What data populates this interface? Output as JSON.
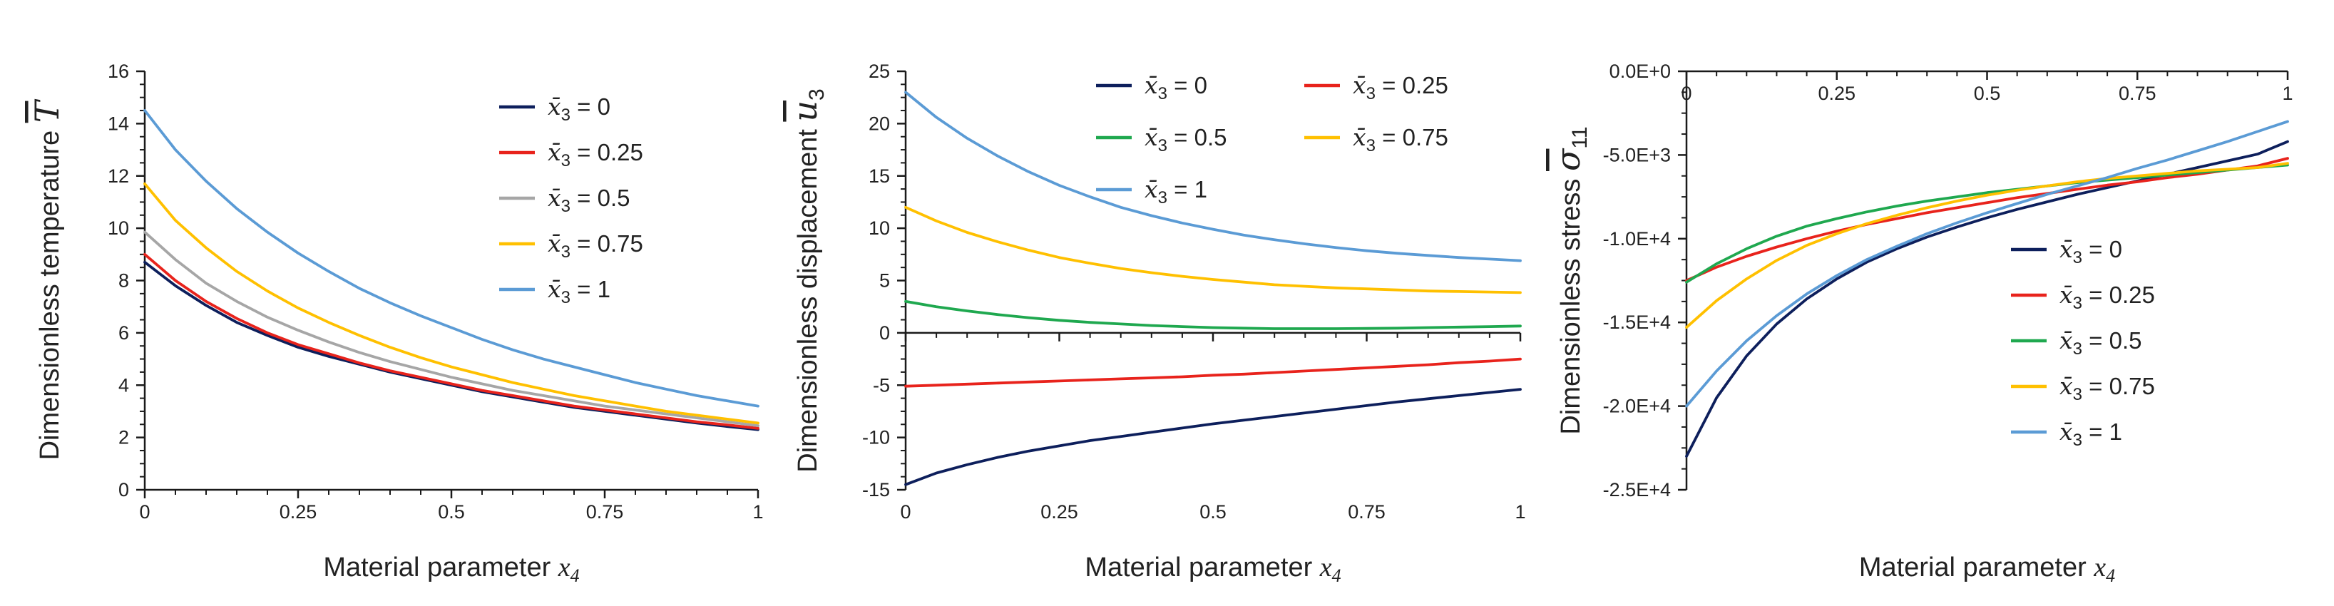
{
  "chart_data": [
    {
      "type": "line",
      "id": "temperature",
      "title": "",
      "xlabel_prefix": "Material parameter ",
      "xlabel_var": "x",
      "xlabel_sub": "4",
      "ylabel_text": "Dimensionless temperature ",
      "ylabel_symbol": "T",
      "ylabel_sub": "",
      "xlim": [
        0,
        1
      ],
      "ylim": [
        0,
        16
      ],
      "xticks": [
        0,
        0.25,
        0.5,
        0.75,
        1
      ],
      "xtick_labels": [
        "0",
        "0.25",
        "0.5",
        "0.75",
        "1"
      ],
      "yticks": [
        0,
        2,
        4,
        6,
        8,
        10,
        12,
        14,
        16
      ],
      "ytick_labels": [
        "0",
        "2",
        "4",
        "6",
        "8",
        "10",
        "12",
        "14",
        "16"
      ],
      "legend_columns": 1,
      "legend_position": "top-right",
      "legend_symbol": "x̄",
      "legend_sub": "3",
      "x": [
        0,
        0.05,
        0.1,
        0.15,
        0.2,
        0.25,
        0.3,
        0.35,
        0.4,
        0.45,
        0.5,
        0.55,
        0.6,
        0.65,
        0.7,
        0.75,
        0.8,
        0.85,
        0.9,
        0.95,
        1
      ],
      "series": [
        {
          "name": "= 0",
          "color": "#0d1f5c",
          "values": [
            8.7,
            7.8,
            7.05,
            6.4,
            5.9,
            5.45,
            5.1,
            4.8,
            4.5,
            4.25,
            4.0,
            3.75,
            3.55,
            3.35,
            3.15,
            3.0,
            2.85,
            2.7,
            2.55,
            2.42,
            2.3
          ]
        },
        {
          "name": "= 0.25",
          "color": "#e8231c",
          "values": [
            9.0,
            8.0,
            7.2,
            6.55,
            6.0,
            5.55,
            5.2,
            4.85,
            4.55,
            4.3,
            4.05,
            3.8,
            3.6,
            3.4,
            3.2,
            3.05,
            2.9,
            2.75,
            2.6,
            2.48,
            2.35
          ]
        },
        {
          "name": "= 0.5",
          "color": "#a6a6a6",
          "values": [
            9.85,
            8.8,
            7.9,
            7.2,
            6.6,
            6.1,
            5.65,
            5.25,
            4.9,
            4.6,
            4.3,
            4.05,
            3.8,
            3.6,
            3.4,
            3.2,
            3.05,
            2.9,
            2.75,
            2.6,
            2.45
          ]
        },
        {
          "name": "= 0.75",
          "color": "#ffc000",
          "values": [
            11.7,
            10.3,
            9.25,
            8.35,
            7.6,
            6.95,
            6.4,
            5.9,
            5.45,
            5.05,
            4.7,
            4.4,
            4.1,
            3.85,
            3.6,
            3.4,
            3.2,
            3.0,
            2.85,
            2.7,
            2.55
          ]
        },
        {
          "name": "= 1",
          "color": "#5b9bd5",
          "values": [
            14.5,
            13.0,
            11.8,
            10.75,
            9.85,
            9.05,
            8.35,
            7.7,
            7.15,
            6.65,
            6.2,
            5.75,
            5.35,
            5.0,
            4.7,
            4.4,
            4.1,
            3.85,
            3.6,
            3.4,
            3.2
          ]
        }
      ]
    },
    {
      "type": "line",
      "id": "displacement",
      "title": "",
      "xlabel_prefix": "Material parameter ",
      "xlabel_var": "x",
      "xlabel_sub": "4",
      "ylabel_text": "Dimensionless displacement ",
      "ylabel_symbol": "u",
      "ylabel_sub": "3",
      "xlim": [
        0,
        1
      ],
      "ylim": [
        -15,
        25
      ],
      "xticks": [
        0,
        0.25,
        0.5,
        0.75,
        1
      ],
      "xtick_labels": [
        "0",
        "0.25",
        "0.5",
        "0.75",
        "1"
      ],
      "yticks": [
        -15,
        -10,
        -5,
        0,
        5,
        10,
        15,
        20,
        25
      ],
      "ytick_labels": [
        "-15",
        "-10",
        "-5",
        "0",
        "5",
        "10",
        "15",
        "20",
        "25"
      ],
      "legend_columns": 2,
      "legend_position": "top",
      "legend_symbol": "x̄",
      "legend_sub": "3",
      "x": [
        0,
        0.05,
        0.1,
        0.15,
        0.2,
        0.25,
        0.3,
        0.35,
        0.4,
        0.45,
        0.5,
        0.55,
        0.6,
        0.65,
        0.7,
        0.75,
        0.8,
        0.85,
        0.9,
        0.95,
        1
      ],
      "series": [
        {
          "name": "= 0",
          "color": "#0d1f5c",
          "values": [
            -14.5,
            -13.4,
            -12.6,
            -11.9,
            -11.3,
            -10.8,
            -10.3,
            -9.9,
            -9.5,
            -9.1,
            -8.7,
            -8.35,
            -8.0,
            -7.65,
            -7.3,
            -6.95,
            -6.6,
            -6.3,
            -6.0,
            -5.7,
            -5.4
          ]
        },
        {
          "name": "= 0.25",
          "color": "#e8231c",
          "values": [
            -5.1,
            -5.0,
            -4.9,
            -4.8,
            -4.7,
            -4.6,
            -4.5,
            -4.4,
            -4.3,
            -4.2,
            -4.05,
            -3.95,
            -3.8,
            -3.65,
            -3.5,
            -3.35,
            -3.2,
            -3.05,
            -2.85,
            -2.7,
            -2.5
          ]
        },
        {
          "name": "= 0.5",
          "color": "#1fa84f",
          "values": [
            3.0,
            2.5,
            2.1,
            1.75,
            1.45,
            1.2,
            1.0,
            0.85,
            0.7,
            0.6,
            0.5,
            0.45,
            0.4,
            0.4,
            0.4,
            0.42,
            0.45,
            0.5,
            0.55,
            0.6,
            0.65
          ]
        },
        {
          "name": "= 0.75",
          "color": "#ffc000",
          "values": [
            12.0,
            10.7,
            9.6,
            8.7,
            7.9,
            7.2,
            6.65,
            6.15,
            5.75,
            5.4,
            5.1,
            4.85,
            4.6,
            4.45,
            4.3,
            4.2,
            4.1,
            4.0,
            3.95,
            3.9,
            3.85
          ]
        },
        {
          "name": "= 1",
          "color": "#5b9bd5",
          "values": [
            23.0,
            20.6,
            18.6,
            16.9,
            15.4,
            14.1,
            13.0,
            12.0,
            11.2,
            10.5,
            9.9,
            9.35,
            8.9,
            8.5,
            8.15,
            7.85,
            7.6,
            7.4,
            7.2,
            7.05,
            6.9
          ]
        }
      ]
    },
    {
      "type": "line",
      "id": "stress",
      "title": "",
      "xlabel_prefix": "Material parameter ",
      "xlabel_var": "x",
      "xlabel_sub": "4",
      "ylabel_text": "Dimensionless stress ",
      "ylabel_symbol": "σ",
      "ylabel_sub": "11",
      "xlim": [
        0,
        1
      ],
      "ylim": [
        -25000,
        0
      ],
      "xticks": [
        0,
        0.25,
        0.5,
        0.75,
        1
      ],
      "xtick_labels": [
        "0",
        "0.25",
        "0.5",
        "0.75",
        "1"
      ],
      "yticks": [
        -25000,
        -20000,
        -15000,
        -10000,
        -5000,
        0
      ],
      "ytick_labels": [
        "-2.5E+4",
        "-2.0E+4",
        "-1.5E+4",
        "-1.0E+4",
        "-5.0E+3",
        "0.0E+0"
      ],
      "legend_columns": 1,
      "legend_position": "lower-right",
      "legend_symbol": "x̄",
      "legend_sub": "3",
      "x": [
        0,
        0.05,
        0.1,
        0.15,
        0.2,
        0.25,
        0.3,
        0.35,
        0.4,
        0.45,
        0.5,
        0.55,
        0.6,
        0.65,
        0.7,
        0.75,
        0.8,
        0.85,
        0.9,
        0.95,
        1
      ],
      "series": [
        {
          "name": "= 0",
          "color": "#0d1f5c",
          "values": [
            -23000,
            -19500,
            -17000,
            -15100,
            -13600,
            -12400,
            -11400,
            -10600,
            -9900,
            -9300,
            -8750,
            -8250,
            -7800,
            -7350,
            -6950,
            -6550,
            -6150,
            -5750,
            -5350,
            -4950,
            -4200
          ]
        },
        {
          "name": "= 0.25",
          "color": "#e8231c",
          "values": [
            -12500,
            -11700,
            -11050,
            -10500,
            -10000,
            -9550,
            -9150,
            -8800,
            -8450,
            -8150,
            -7850,
            -7550,
            -7300,
            -7050,
            -6800,
            -6600,
            -6350,
            -6150,
            -5900,
            -5650,
            -5200
          ]
        },
        {
          "name": "= 0.5",
          "color": "#1fa84f",
          "values": [
            -12600,
            -11500,
            -10600,
            -9850,
            -9250,
            -8800,
            -8400,
            -8050,
            -7750,
            -7500,
            -7250,
            -7050,
            -6850,
            -6650,
            -6500,
            -6350,
            -6200,
            -6050,
            -5900,
            -5750,
            -5600
          ]
        },
        {
          "name": "= 0.75",
          "color": "#ffc000",
          "values": [
            -15300,
            -13700,
            -12400,
            -11300,
            -10400,
            -9700,
            -9100,
            -8600,
            -8150,
            -7750,
            -7400,
            -7100,
            -6850,
            -6600,
            -6400,
            -6250,
            -6100,
            -5950,
            -5850,
            -5750,
            -5500
          ]
        },
        {
          "name": "= 1",
          "color": "#5b9bd5",
          "values": [
            -20000,
            -17900,
            -16100,
            -14600,
            -13300,
            -12200,
            -11250,
            -10450,
            -9700,
            -9050,
            -8450,
            -7900,
            -7350,
            -6850,
            -6350,
            -5800,
            -5300,
            -4750,
            -4200,
            -3600,
            -3000
          ]
        }
      ]
    }
  ]
}
